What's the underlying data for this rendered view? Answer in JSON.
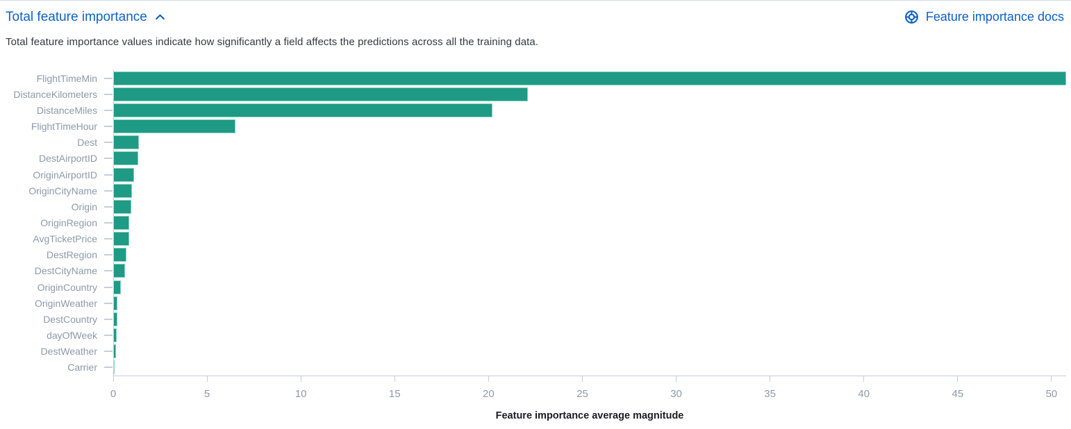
{
  "header": {
    "title": "Total feature importance",
    "collapse_icon": "chevron-up",
    "docs_link_label": "Feature importance docs",
    "docs_link_icon": "lifebuoy-help"
  },
  "description": "Total feature importance values indicate how significantly a field affects the predictions across all the training data.",
  "colors": {
    "accent_blue": "#0C61C6",
    "bar_fill": "#1E9A85",
    "bar_border": "#85CFBE",
    "axis_line": "#C5CCDA",
    "axis_text": "#8E98AB",
    "body_text": "#343741"
  },
  "chart_data": {
    "type": "bar",
    "orientation": "horizontal",
    "title": "Total feature importance",
    "categories": [
      "FlightTimeMin",
      "DistanceKilometers",
      "DistanceMiles",
      "FlightTimeHour",
      "Dest",
      "DestAirportID",
      "OriginAirportID",
      "OriginCityName",
      "Origin",
      "OriginRegion",
      "AvgTicketPrice",
      "DestRegion",
      "DestCityName",
      "OriginCountry",
      "OriginWeather",
      "DestCountry",
      "dayOfWeek",
      "DestWeather",
      "Carrier"
    ],
    "values": [
      50.78,
      22.1,
      20.2,
      6.5,
      1.37,
      1.33,
      1.11,
      1.0,
      0.96,
      0.85,
      0.84,
      0.72,
      0.63,
      0.41,
      0.22,
      0.21,
      0.2,
      0.16,
      0.07
    ],
    "xlabel": "Feature importance average magnitude",
    "ylabel": "",
    "xlim": [
      0,
      50.78
    ],
    "xticks": [
      0,
      5,
      10,
      15,
      20,
      25,
      30,
      35,
      40,
      45,
      50
    ],
    "grid": false,
    "legend": false
  }
}
